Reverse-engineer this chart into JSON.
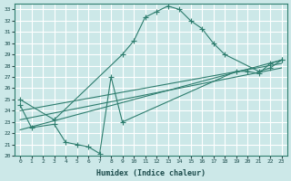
{
  "xlabel": "Humidex (Indice chaleur)",
  "xlim": [
    -0.5,
    23.5
  ],
  "ylim": [
    20,
    33.5
  ],
  "xticks": [
    0,
    1,
    2,
    3,
    4,
    5,
    6,
    7,
    8,
    9,
    10,
    11,
    12,
    13,
    14,
    15,
    16,
    17,
    18,
    19,
    20,
    21,
    22,
    23
  ],
  "yticks": [
    20,
    21,
    22,
    23,
    24,
    25,
    26,
    27,
    28,
    29,
    30,
    31,
    32,
    33
  ],
  "bg_color": "#cce8e8",
  "grid_color": "#ffffff",
  "line_color": "#2e7d6e",
  "curve1_x": [
    0,
    3,
    9,
    10,
    11,
    12,
    13,
    14,
    15,
    16,
    17,
    18,
    21,
    22,
    23
  ],
  "curve1_y": [
    25.0,
    23.2,
    29.0,
    30.2,
    32.3,
    32.8,
    33.3,
    33.0,
    32.0,
    31.3,
    30.0,
    29.0,
    27.5,
    27.8,
    28.5
  ],
  "curve2_x": [
    0,
    1,
    3,
    4,
    5,
    6,
    7,
    8,
    9,
    19,
    20,
    21,
    22,
    23
  ],
  "curve2_y": [
    24.5,
    22.5,
    22.8,
    21.2,
    21.0,
    20.8,
    20.2,
    27.0,
    23.0,
    27.5,
    27.5,
    27.3,
    28.2,
    28.5
  ],
  "trend1_x": [
    0,
    23
  ],
  "trend1_y": [
    22.3,
    28.5
  ],
  "trend2_x": [
    0,
    23
  ],
  "trend2_y": [
    23.2,
    27.8
  ],
  "trend3_x": [
    0,
    23
  ],
  "trend3_y": [
    24.0,
    28.2
  ]
}
